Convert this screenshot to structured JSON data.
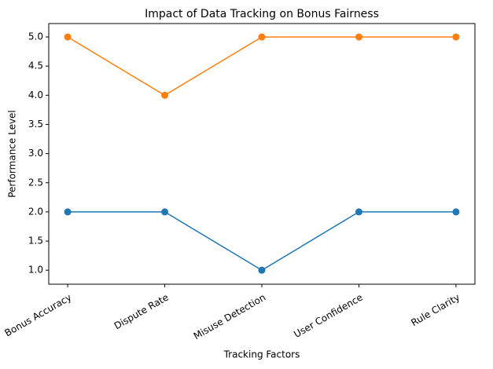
{
  "chart_data": {
    "type": "line",
    "title": "Impact of Data Tracking on Bonus Fairness",
    "x_label": "Tracking Factors",
    "y_label": "Performance Level",
    "categories": [
      "Bonus Accuracy",
      "Dispute Rate",
      "Misuse Detection",
      "User Confidence",
      "Rule Clarity"
    ],
    "series": [
      {
        "color": "#1f77b4",
        "values": [
          2,
          2,
          1,
          2,
          2
        ]
      },
      {
        "color": "#ff7f0e",
        "values": [
          5,
          4,
          5,
          5,
          5
        ]
      }
    ],
    "ylim": [
      0.76,
      5.23
    ],
    "yticks": [
      {
        "value": 1,
        "label": "1.0"
      },
      1.5,
      {
        "value": 2,
        "label": "2.0"
      },
      2.5,
      {
        "value": 3,
        "label": "3.0"
      },
      3.5,
      {
        "value": 4,
        "label": "4.0"
      },
      4.5,
      {
        "value": 5,
        "label": "5.0"
      }
    ],
    "grid": false
  }
}
